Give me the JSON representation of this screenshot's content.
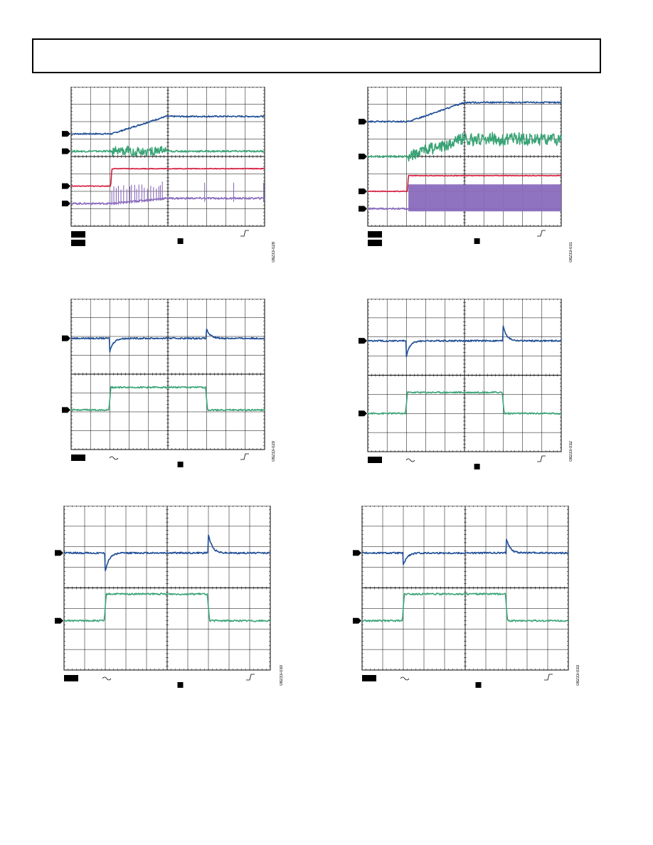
{
  "page": {
    "colors": {
      "ch1": "#1f4e96",
      "ch2": "#3aa476",
      "ch3": "#d51a3c",
      "ch4": "#8a6bbd",
      "grid": "#000000"
    }
  },
  "scopes": [
    {
      "fig_id": "08233-028",
      "chart_data": {
        "type": "line",
        "x_divisions": 10,
        "y_divisions": 8,
        "series": [
          {
            "channel": 1,
            "color": "#1f4e96",
            "points": [
              [
                0,
                5.3
              ],
              [
                2.1,
                5.3
              ],
              [
                4.9,
                6.3
              ],
              [
                10,
                6.3
              ]
            ],
            "noise": 0.04
          },
          {
            "channel": 2,
            "color": "#3aa476",
            "points": [
              [
                0,
                4.3
              ],
              [
                10,
                4.3
              ]
            ],
            "noise": 0.05,
            "burst": [
              2.1,
              4.9,
              0.25
            ]
          },
          {
            "channel": 3,
            "color": "#d51a3c",
            "points": [
              [
                0,
                2.3
              ],
              [
                2.05,
                2.3
              ],
              [
                2.1,
                3.3
              ],
              [
                10,
                3.3
              ]
            ],
            "noise": 0.02
          },
          {
            "channel": 4,
            "color": "#8a6bbd",
            "points": [
              [
                0,
                1.3
              ],
              [
                2.1,
                1.3
              ],
              [
                4.9,
                1.6
              ],
              [
                10,
                1.6
              ]
            ],
            "noise": 0.05,
            "spikes": [
              2.1,
              4.9,
              1.0
            ]
          }
        ]
      }
    },
    {
      "fig_id": "08233-031",
      "chart_data": {
        "type": "line",
        "x_divisions": 10,
        "y_divisions": 8,
        "series": [
          {
            "channel": 1,
            "color": "#1f4e96",
            "points": [
              [
                0,
                6.0
              ],
              [
                2.1,
                6.0
              ],
              [
                5.0,
                7.1
              ],
              [
                10,
                7.1
              ]
            ],
            "noise": 0.04
          },
          {
            "channel": 2,
            "color": "#3aa476",
            "points": [
              [
                0,
                4.0
              ],
              [
                2.1,
                4.0
              ],
              [
                5.0,
                5.0
              ],
              [
                10,
                5.0
              ]
            ],
            "noise": 0.05,
            "burst": [
              2.1,
              10,
              0.35
            ]
          },
          {
            "channel": 3,
            "color": "#d51a3c",
            "points": [
              [
                0,
                2.0
              ],
              [
                2.05,
                2.0
              ],
              [
                2.1,
                2.9
              ],
              [
                10,
                2.9
              ]
            ],
            "noise": 0.02
          },
          {
            "channel": 4,
            "color": "#8a6bbd",
            "points": [
              [
                0,
                1.0
              ],
              [
                2.1,
                1.0
              ],
              [
                10,
                1.0
              ]
            ],
            "noise": 0.05,
            "block": [
              2.1,
              10,
              1.4
            ]
          }
        ]
      }
    },
    {
      "fig_id": "08233-029",
      "chart_data": {
        "type": "line",
        "x_divisions": 10,
        "y_divisions": 8,
        "series": [
          {
            "channel": 1,
            "color": "#1f4e96",
            "points": [
              [
                0,
                5.9
              ],
              [
                10,
                5.9
              ]
            ],
            "noise": 0.04,
            "transients": [
              [
                2.0,
                -0.7
              ],
              [
                7.0,
                0.5
              ]
            ]
          },
          {
            "channel": 2,
            "color": "#3aa476",
            "points": [
              [
                0,
                2.1
              ],
              [
                1.95,
                2.1
              ],
              [
                2.05,
                3.3
              ],
              [
                6.95,
                3.3
              ],
              [
                7.05,
                2.1
              ],
              [
                10,
                2.1
              ]
            ],
            "noise": 0.04
          }
        ]
      }
    },
    {
      "fig_id": "08233-032",
      "chart_data": {
        "type": "line",
        "x_divisions": 10,
        "y_divisions": 8,
        "series": [
          {
            "channel": 1,
            "color": "#1f4e96",
            "points": [
              [
                0,
                5.8
              ],
              [
                10,
                5.8
              ]
            ],
            "noise": 0.04,
            "transients": [
              [
                2.0,
                -0.8
              ],
              [
                7.0,
                0.8
              ]
            ]
          },
          {
            "channel": 2,
            "color": "#3aa476",
            "points": [
              [
                0,
                2.0
              ],
              [
                1.95,
                2.0
              ],
              [
                2.05,
                3.1
              ],
              [
                6.95,
                3.1
              ],
              [
                7.05,
                2.0
              ],
              [
                10,
                2.0
              ]
            ],
            "noise": 0.04
          }
        ]
      }
    },
    {
      "fig_id": "08233-030",
      "chart_data": {
        "type": "line",
        "x_divisions": 10,
        "y_divisions": 8,
        "series": [
          {
            "channel": 1,
            "color": "#1f4e96",
            "points": [
              [
                0,
                5.7
              ],
              [
                10,
                5.7
              ]
            ],
            "noise": 0.04,
            "transients": [
              [
                2.0,
                -0.9
              ],
              [
                7.0,
                0.9
              ]
            ]
          },
          {
            "channel": 2,
            "color": "#3aa476",
            "points": [
              [
                0,
                2.4
              ],
              [
                1.95,
                2.4
              ],
              [
                2.05,
                3.7
              ],
              [
                6.95,
                3.7
              ],
              [
                7.05,
                2.4
              ],
              [
                10,
                2.4
              ]
            ],
            "noise": 0.04
          }
        ]
      }
    },
    {
      "fig_id": "08233-033",
      "chart_data": {
        "type": "line",
        "x_divisions": 10,
        "y_divisions": 8,
        "series": [
          {
            "channel": 1,
            "color": "#1f4e96",
            "points": [
              [
                0,
                5.7
              ],
              [
                10,
                5.7
              ]
            ],
            "noise": 0.04,
            "transients": [
              [
                2.0,
                -0.6
              ],
              [
                7.0,
                0.7
              ]
            ]
          },
          {
            "channel": 2,
            "color": "#3aa476",
            "points": [
              [
                0,
                2.4
              ],
              [
                1.95,
                2.4
              ],
              [
                2.05,
                3.7
              ],
              [
                6.95,
                3.7
              ],
              [
                7.05,
                2.4
              ],
              [
                10,
                2.4
              ]
            ],
            "noise": 0.04
          }
        ]
      }
    }
  ]
}
